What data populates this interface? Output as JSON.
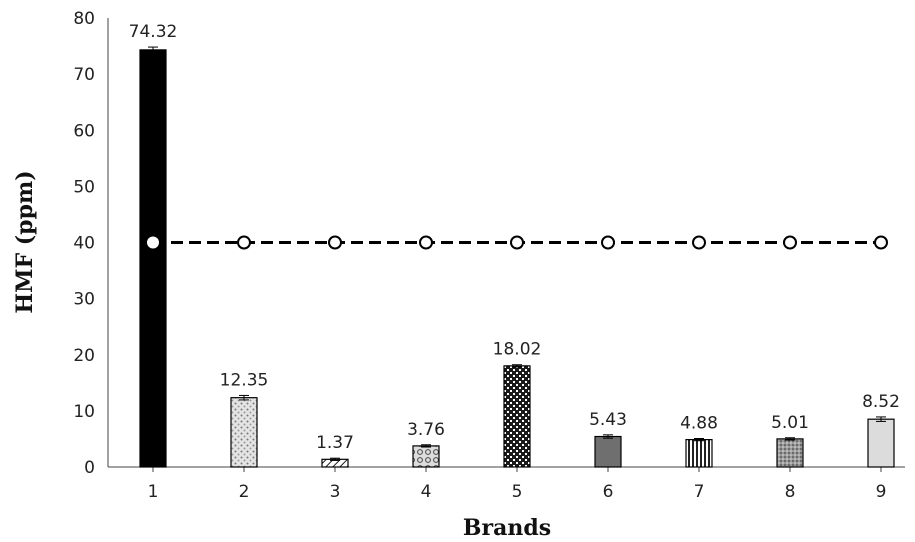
{
  "chart_data": {
    "type": "bar",
    "title": "",
    "xlabel": "Brands",
    "ylabel": "HMF (ppm)",
    "ylim": [
      0,
      80
    ],
    "yticks": [
      0,
      10,
      20,
      30,
      40,
      50,
      60,
      70,
      80
    ],
    "grid": false,
    "legend": "none",
    "categories": [
      "1",
      "2",
      "3",
      "4",
      "5",
      "6",
      "7",
      "8",
      "9"
    ],
    "values": [
      74.32,
      12.35,
      1.37,
      3.76,
      18.02,
      5.43,
      4.88,
      5.01,
      8.52
    ],
    "value_labels": [
      "74.32",
      "12.35",
      "1.37",
      "3.76",
      "18.02",
      "5.43",
      "4.88",
      "5.01",
      "8.52"
    ],
    "error_bars": [
      0.5,
      0.4,
      0.2,
      0.2,
      0.2,
      0.3,
      0.2,
      0.2,
      0.4
    ],
    "bar_styles": [
      "solid-black",
      "light-dots",
      "diagonal-hatch",
      "circles",
      "dense-check",
      "solid-gray",
      "vertical-lines",
      "fine-dots",
      "light-gray"
    ],
    "reference_line": {
      "value": 40,
      "style": "dashed",
      "marker": "open-circle",
      "first_marker": "filled",
      "color": "#000000"
    }
  }
}
